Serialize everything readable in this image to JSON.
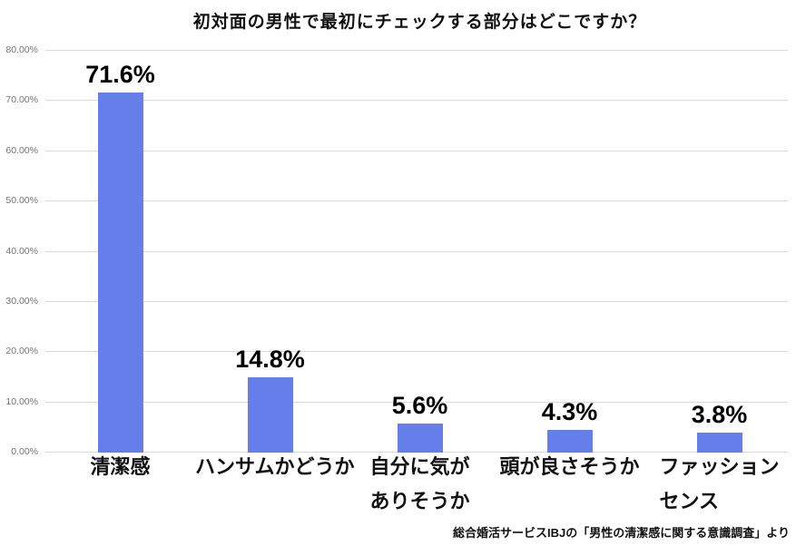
{
  "title": "初対面の男性で最初にチェックする部分はどこですか？",
  "source_note": "総合婚活サービスIBJの「男性の清潔感に関する意識調査」より",
  "colors": {
    "bar": "#667EEA",
    "gridline": "#D9D9D9",
    "tick_label": "#757575",
    "text": "#000000",
    "background": "#FFFFFF"
  },
  "y_axis": {
    "tick_labels": [
      "80.00%",
      "70.00%",
      "60.00%",
      "50.00%",
      "40.00%",
      "30.00%",
      "20.00%",
      "10.00%",
      "0.00%"
    ],
    "min": 0,
    "max": 80
  },
  "chart_data": {
    "type": "bar",
    "title": "初対面の男性で最初にチェックする部分はどこですか？",
    "categories": [
      "清潔感",
      "ハンサムかどうか",
      "自分に気がありそうか",
      "頭が良さそうか",
      "ファッションセンス"
    ],
    "category_label_lines": [
      [
        "清潔感"
      ],
      [
        "ハンサムかどうか"
      ],
      [
        "自分に気が",
        "ありそうか"
      ],
      [
        "頭が良さそうか"
      ],
      [
        "ファッション",
        "センス"
      ]
    ],
    "values": [
      71.6,
      14.8,
      5.6,
      4.3,
      3.8
    ],
    "data_labels": [
      "71.6%",
      "14.8%",
      "5.6%",
      "4.3%",
      "3.8%"
    ],
    "xlabel": "",
    "ylabel": "",
    "ylim": [
      0,
      80
    ],
    "grid": true,
    "legend": false,
    "source": "総合婚活サービスIBJの「男性の清潔感に関する意識調査」より"
  }
}
